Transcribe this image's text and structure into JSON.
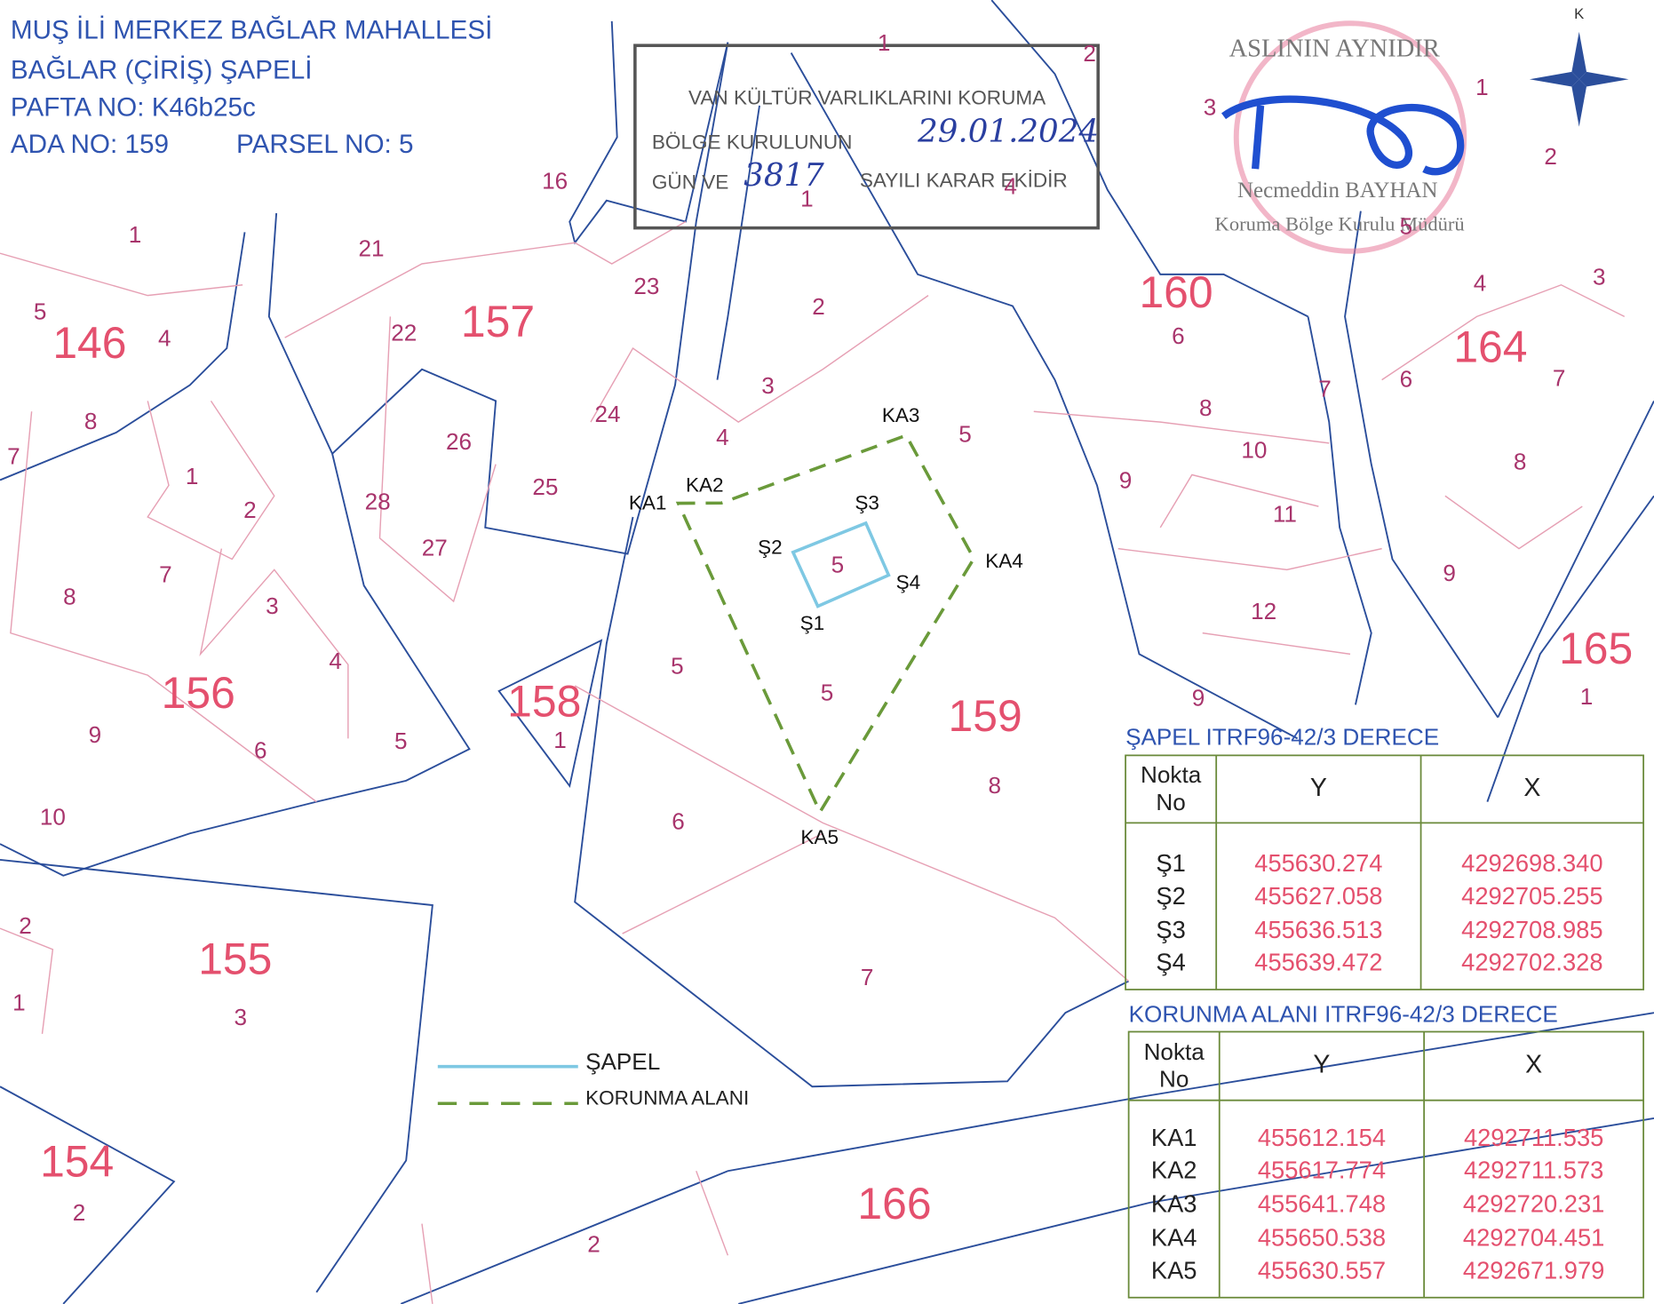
{
  "header": {
    "lines": [
      "MUŞ İLİ MERKEZ BAĞLAR MAHALLESİ",
      "BAĞLAR (ÇİRİŞ) ŞAPELİ",
      "PAFTA NO: K46b25c",
      "ADA NO: 159",
      "PARSEL NO: 5"
    ]
  },
  "stamp": {
    "lines": [
      "VAN KÜLTÜR VARLIKLARINI KORUMA",
      "BÖLGE KURULUNUN",
      "29.01.2024",
      "GÜN VE",
      "3817",
      "SAYILI KARAR EKİDİR"
    ]
  },
  "seal": {
    "lines": [
      "ASLININ AYNIDIR",
      "Necmeddin BAYHAN",
      "Koruma Bölge Kurulu Müdürü"
    ]
  },
  "north": "K",
  "blocks": [
    "146",
    "157",
    "160",
    "164",
    "156",
    "158",
    "159",
    "165",
    "155",
    "154",
    "166"
  ],
  "parcels": [
    "1",
    "2",
    "3",
    "1",
    "2",
    "16",
    "1",
    "4",
    "5",
    "1",
    "21",
    "23",
    "2",
    "4",
    "3",
    "5",
    "4",
    "22",
    "6",
    "7",
    "6",
    "7",
    "3",
    "8",
    "24",
    "4",
    "5",
    "8",
    "10",
    "8",
    "7",
    "26",
    "1",
    "2",
    "28",
    "25",
    "9",
    "11",
    "27",
    "7",
    "8",
    "3",
    "9",
    "12",
    "4",
    "5",
    "5",
    "9",
    "1",
    "9",
    "6",
    "5",
    "1",
    "8",
    "10",
    "6",
    "7",
    "2",
    "1",
    "3",
    "2",
    "2",
    "5"
  ],
  "points": [
    "KA1",
    "KA2",
    "KA3",
    "KA4",
    "KA5",
    "Ş3",
    "Ş2",
    "Ş4",
    "Ş1"
  ],
  "legend": [
    "ŞAPEL",
    "KORUNMA ALANI"
  ],
  "tables": [
    {
      "title": "ŞAPEL ITRF96-42/3 DERECE",
      "header": [
        "Nokta No",
        "Y",
        "X"
      ],
      "rows": [
        [
          "Ş1",
          "455630.274",
          "4292698.340"
        ],
        [
          "Ş2",
          "455627.058",
          "4292705.255"
        ],
        [
          "Ş3",
          "455636.513",
          "4292708.985"
        ],
        [
          "Ş4",
          "455639.472",
          "4292702.328"
        ]
      ]
    },
    {
      "title": "KORUNMA ALANI ITRF96-42/3 DERECE",
      "header": [
        "Nokta No",
        "Y",
        "X"
      ],
      "rows": [
        [
          "KA1",
          "455612.154",
          "4292711.535"
        ],
        [
          "KA2",
          "455617.774",
          "4292711.573"
        ],
        [
          "KA3",
          "455641.748",
          "4292720.231"
        ],
        [
          "KA4",
          "455650.538",
          "4292704.451"
        ],
        [
          "KA5",
          "455630.557",
          "4292671.979"
        ]
      ]
    }
  ]
}
